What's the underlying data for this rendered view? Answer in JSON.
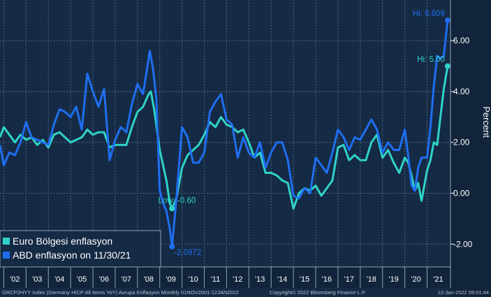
{
  "colors": {
    "background": "#152a44",
    "axis_panel": "#11243b",
    "grid": "#4f6580",
    "euro": "#2fd3c8",
    "us": "#1f6ef0"
  },
  "footer": {
    "left": "GRCP2HYY Index (Germany HICP All Items YoY) Avrupa Enflasyon  Monthly 01NOV2001-12JAN2022",
    "center": "Copyright© 2022 Bloomberg Finance L.P.",
    "right": "12-Jan-2022 09:01:44"
  },
  "chart_data": {
    "type": "line",
    "ylabel": "Percent",
    "ylim": [
      -2.9,
      7.6
    ],
    "yticks": [
      -2.0,
      0.0,
      2.0,
      4.0,
      6.0
    ],
    "ytick_labels": [
      "-2.00",
      "0.00",
      "2.00",
      "4.00",
      "6.00"
    ],
    "x_range": [
      2001.83,
      2022.05
    ],
    "x_tick_labels": [
      "'02",
      "'03",
      "'04",
      "'05",
      "'06",
      "'07",
      "'08",
      "'09",
      "'10",
      "'11",
      "'12",
      "'13",
      "'14",
      "'15",
      "'16",
      "'17",
      "'18",
      "'19",
      "'20",
      "'21"
    ],
    "x_tick_years": [
      2002,
      2003,
      2004,
      2005,
      2006,
      2007,
      2008,
      2009,
      2010,
      2011,
      2012,
      2013,
      2014,
      2015,
      2016,
      2017,
      2018,
      2019,
      2020,
      2021
    ],
    "grid": true,
    "legend_position": "bottom-left",
    "series": [
      {
        "name": "Euro Bölgesi enflasyon",
        "color": "#2fd3c8",
        "x": [
          2001.83,
          2002.0,
          2002.25,
          2002.5,
          2002.75,
          2003.0,
          2003.25,
          2003.5,
          2003.75,
          2004.0,
          2004.25,
          2004.5,
          2004.75,
          2005.0,
          2005.25,
          2005.5,
          2005.75,
          2006.0,
          2006.25,
          2006.5,
          2006.75,
          2007.0,
          2007.25,
          2007.5,
          2007.75,
          2008.0,
          2008.25,
          2008.5,
          2008.6,
          2008.75,
          2009.0,
          2009.15,
          2009.3,
          2009.45,
          2009.55,
          2009.75,
          2010.0,
          2010.25,
          2010.5,
          2010.75,
          2011.0,
          2011.25,
          2011.5,
          2011.75,
          2012.0,
          2012.25,
          2012.5,
          2012.75,
          2013.0,
          2013.25,
          2013.5,
          2013.75,
          2014.0,
          2014.25,
          2014.5,
          2014.75,
          2015.0,
          2015.25,
          2015.5,
          2015.75,
          2016.0,
          2016.25,
          2016.5,
          2016.75,
          2017.0,
          2017.25,
          2017.5,
          2017.75,
          2018.0,
          2018.25,
          2018.5,
          2018.75,
          2019.0,
          2019.25,
          2019.5,
          2019.75,
          2020.0,
          2020.15,
          2020.3,
          2020.45,
          2020.6,
          2020.75,
          2021.0,
          2021.15,
          2021.3,
          2021.45,
          2021.6,
          2021.75,
          2021.92
        ],
        "y": [
          2.2,
          2.6,
          2.3,
          2.0,
          2.3,
          2.1,
          2.2,
          1.9,
          2.1,
          1.8,
          2.3,
          2.4,
          2.2,
          2.0,
          2.1,
          2.2,
          2.5,
          2.3,
          2.4,
          2.4,
          1.8,
          1.9,
          1.9,
          1.9,
          2.6,
          3.2,
          3.4,
          3.9,
          4.0,
          3.3,
          1.7,
          1.1,
          0.5,
          -0.4,
          -0.6,
          -0.2,
          1.0,
          1.5,
          1.7,
          1.9,
          2.3,
          2.8,
          2.6,
          3.0,
          2.7,
          2.6,
          2.4,
          2.5,
          2.0,
          1.4,
          1.6,
          0.8,
          0.8,
          0.7,
          0.5,
          0.4,
          -0.6,
          0.0,
          0.2,
          0.1,
          0.3,
          -0.1,
          0.2,
          0.5,
          1.8,
          1.9,
          1.3,
          1.5,
          1.3,
          1.3,
          2.0,
          2.3,
          1.4,
          1.7,
          1.2,
          0.8,
          1.4,
          1.2,
          0.7,
          0.1,
          0.4,
          -0.3,
          0.9,
          1.3,
          2.0,
          1.9,
          3.0,
          4.1,
          5.0
        ],
        "peak_label": "Hi: 5.00",
        "trough_label": "Low: -0.60"
      },
      {
        "name": "ABD enflasyon on 11/30/21",
        "color": "#1f6ef0",
        "x": [
          2001.83,
          2002.0,
          2002.25,
          2002.5,
          2002.75,
          2003.0,
          2003.25,
          2003.5,
          2003.75,
          2004.0,
          2004.25,
          2004.5,
          2004.75,
          2005.0,
          2005.25,
          2005.5,
          2005.75,
          2006.0,
          2006.25,
          2006.5,
          2006.75,
          2007.0,
          2007.25,
          2007.5,
          2007.75,
          2008.0,
          2008.25,
          2008.45,
          2008.55,
          2008.7,
          2008.85,
          2009.0,
          2009.15,
          2009.3,
          2009.45,
          2009.55,
          2009.75,
          2010.0,
          2010.25,
          2010.5,
          2010.75,
          2011.0,
          2011.25,
          2011.5,
          2011.75,
          2012.0,
          2012.25,
          2012.5,
          2012.75,
          2013.0,
          2013.25,
          2013.5,
          2013.75,
          2014.0,
          2014.25,
          2014.5,
          2014.75,
          2015.0,
          2015.25,
          2015.5,
          2015.75,
          2016.0,
          2016.25,
          2016.5,
          2016.75,
          2017.0,
          2017.25,
          2017.5,
          2017.75,
          2018.0,
          2018.25,
          2018.5,
          2018.75,
          2019.0,
          2019.25,
          2019.5,
          2019.75,
          2020.0,
          2020.15,
          2020.3,
          2020.45,
          2020.6,
          2020.75,
          2021.0,
          2021.15,
          2021.3,
          2021.45,
          2021.6,
          2021.75,
          2021.92
        ],
        "y": [
          1.9,
          1.1,
          1.6,
          1.5,
          2.0,
          2.8,
          2.2,
          2.1,
          2.0,
          1.9,
          2.7,
          3.3,
          3.2,
          3.0,
          3.4,
          2.5,
          4.7,
          4.0,
          3.4,
          4.1,
          1.3,
          2.1,
          2.6,
          2.4,
          3.5,
          4.3,
          3.9,
          5.0,
          5.6,
          4.9,
          3.7,
          0.1,
          -0.4,
          -0.7,
          -1.4,
          -2.1,
          -0.2,
          2.6,
          2.2,
          1.2,
          1.2,
          1.6,
          3.2,
          3.6,
          3.9,
          2.9,
          2.7,
          1.4,
          2.2,
          1.6,
          1.4,
          2.0,
          1.0,
          1.6,
          2.0,
          2.0,
          1.3,
          -0.1,
          -0.2,
          0.2,
          0.0,
          1.4,
          1.1,
          0.8,
          1.6,
          2.5,
          2.2,
          1.7,
          2.2,
          2.1,
          2.5,
          2.9,
          2.5,
          1.6,
          2.0,
          1.7,
          1.7,
          2.5,
          1.5,
          0.3,
          0.1,
          1.0,
          1.4,
          1.4,
          2.6,
          4.2,
          5.4,
          5.3,
          5.4,
          6.8
        ],
        "peak_label": "Hi: 6.809",
        "trough_label": "-2.0972"
      }
    ]
  }
}
